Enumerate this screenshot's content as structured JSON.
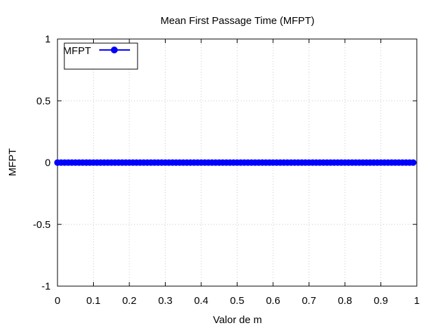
{
  "chart_data": {
    "type": "line",
    "title": "Mean First Passage Time (MFPT)",
    "xlabel": "Valor de m",
    "ylabel": "MFPT",
    "xlim": [
      0,
      1
    ],
    "ylim": [
      -1,
      1
    ],
    "x_ticks": [
      "0",
      "0.1",
      "0.2",
      "0.3",
      "0.4",
      "0.5",
      "0.6",
      "0.7",
      "0.8",
      "0.9",
      "1"
    ],
    "y_ticks": [
      "1",
      "0.5",
      "0",
      "-0.5",
      "-1"
    ],
    "grid": true,
    "legend_position": "top-left",
    "series": [
      {
        "name": "MFPT",
        "color": "#0000ff",
        "marker": "circle",
        "x_start": 0,
        "x_end": 0.99,
        "x_step": 0.01,
        "y_constant": 0
      }
    ]
  }
}
